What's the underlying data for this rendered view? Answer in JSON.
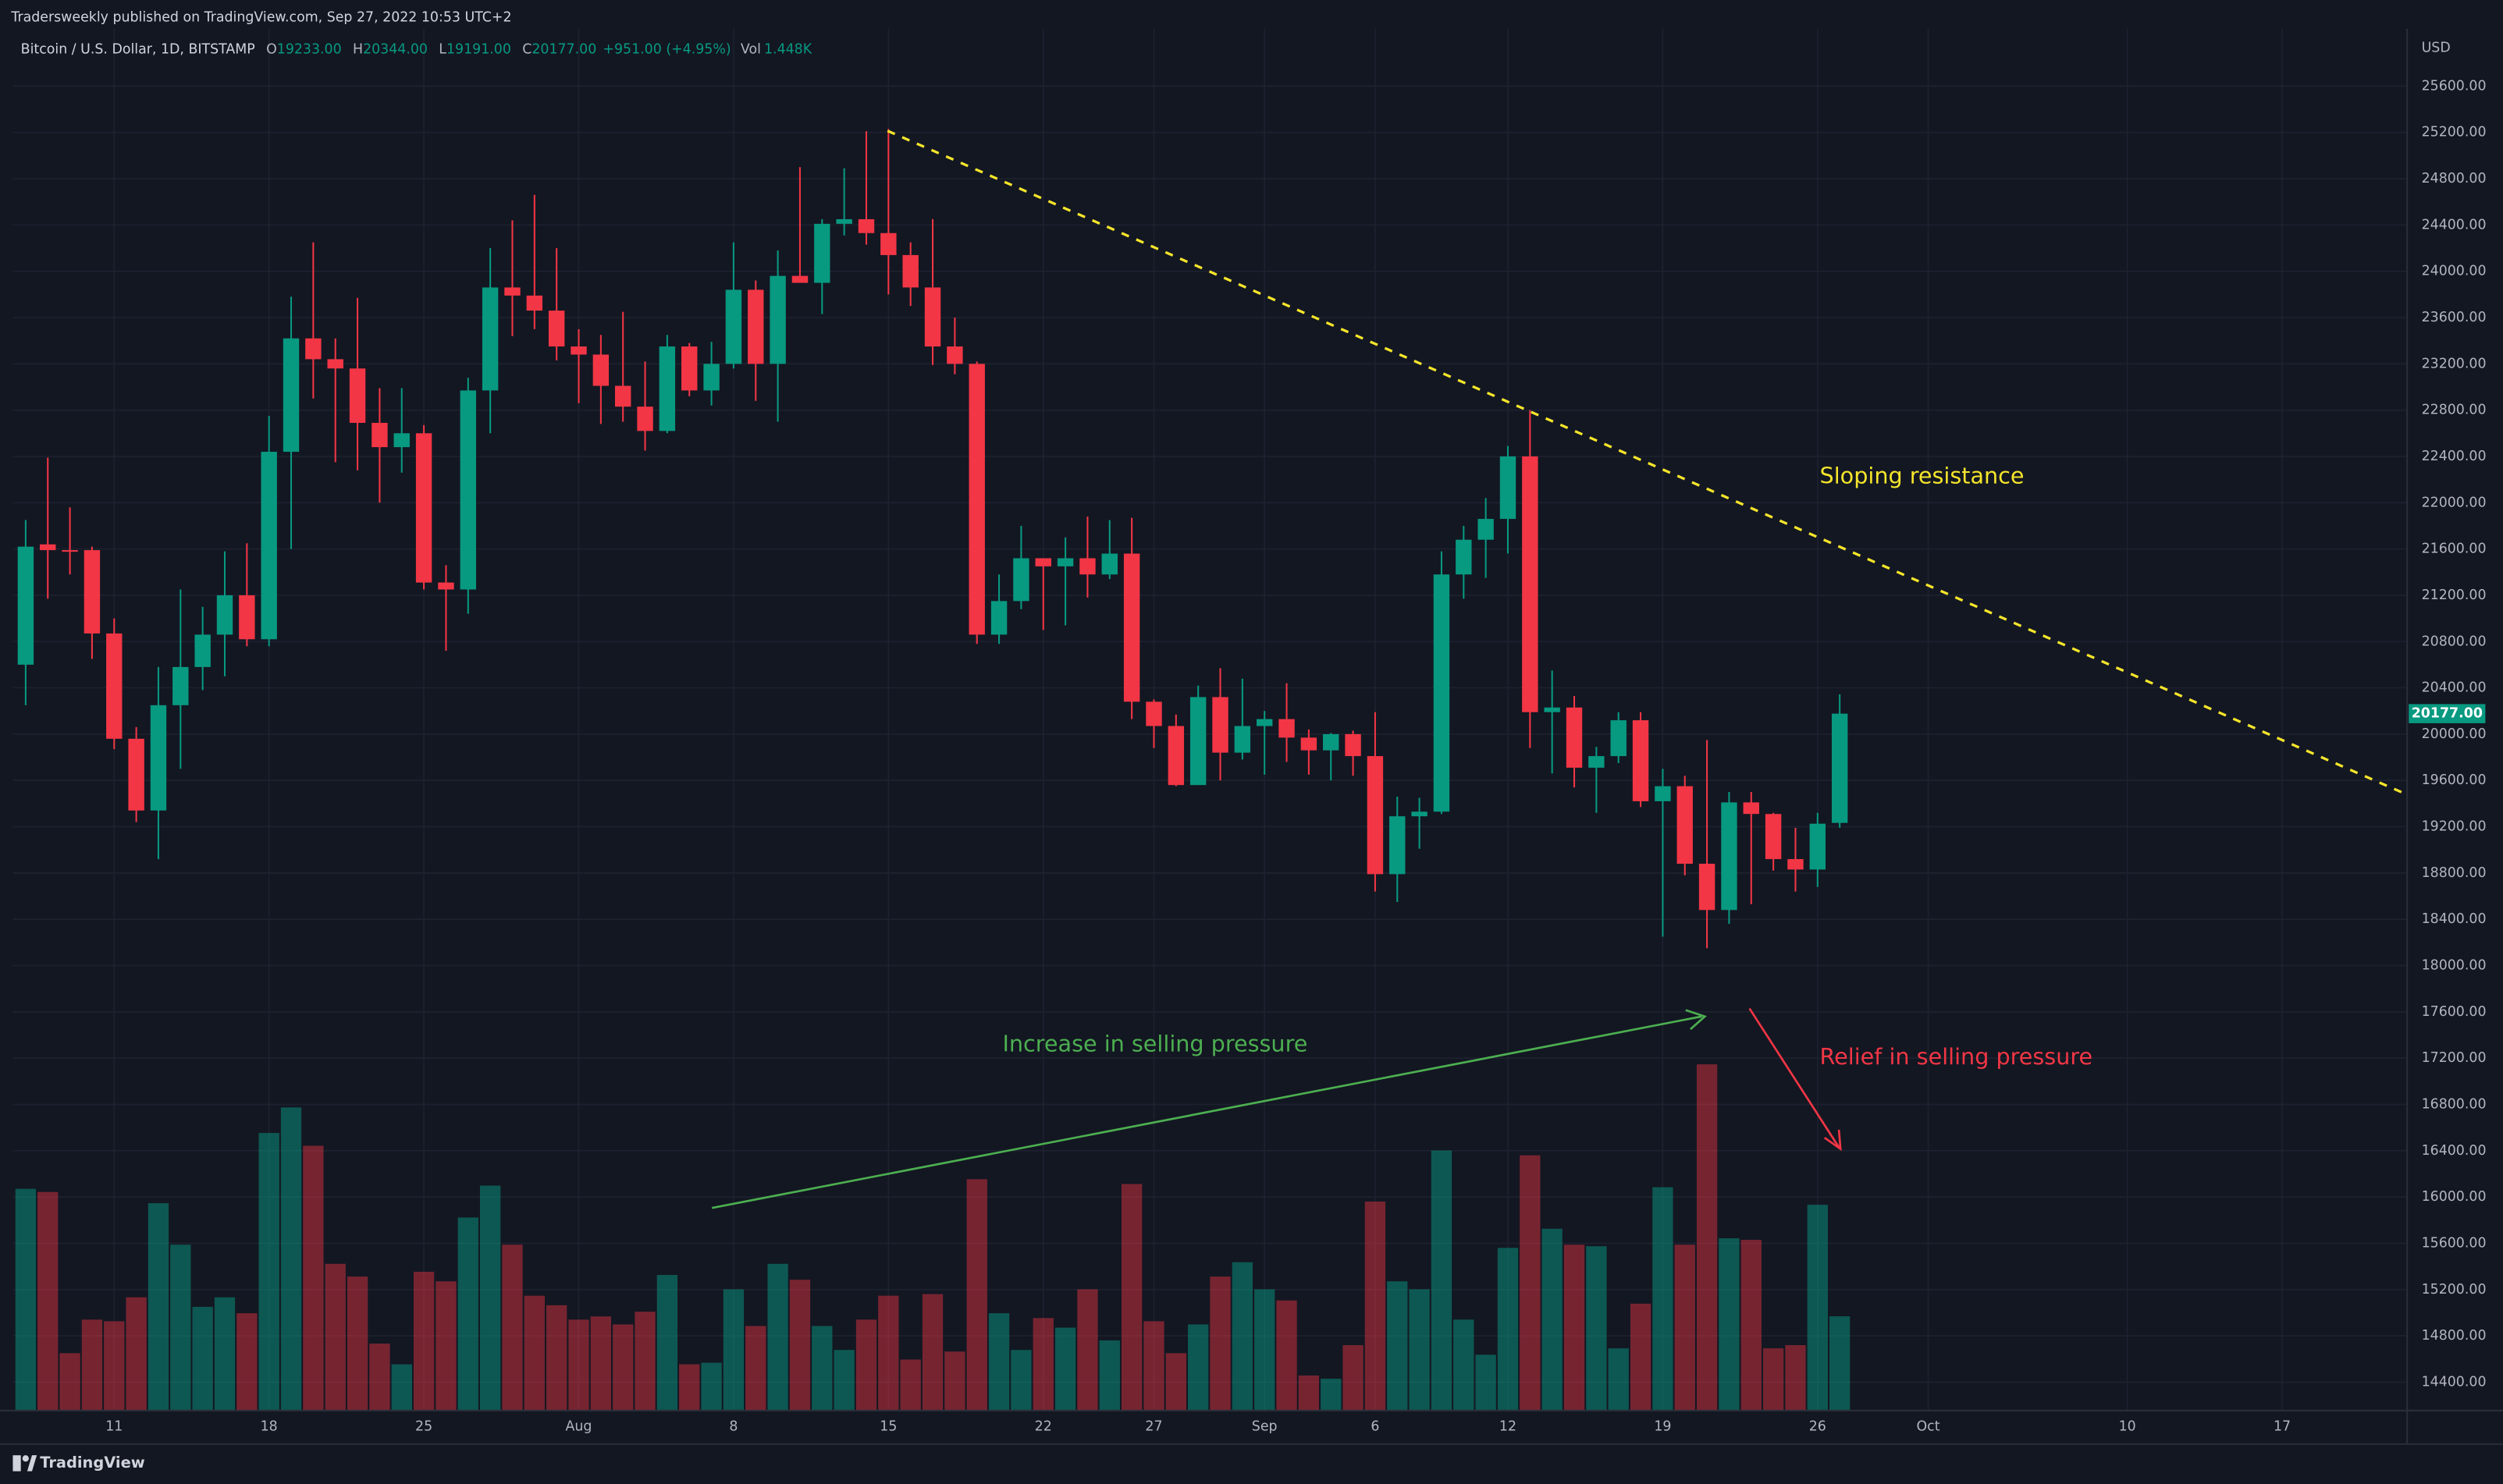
{
  "chart_data": {
    "type": "candlestick",
    "published": "Tradersweekly published on TradingView.com, Sep 27, 2022 10:53 UTC+2",
    "symbol": "Bitcoin / U.S. Dollar, 1D, BITSTAMP",
    "header_fields": [
      {
        "key": "O",
        "value": 19233,
        "label": "19233.00"
      },
      {
        "key": "H",
        "value": 20344,
        "label": "20344.00"
      },
      {
        "key": "L",
        "value": 19191,
        "label": "19191.00"
      },
      {
        "key": "C",
        "value": 20177,
        "label": "20177.00"
      }
    ],
    "change": "+951.00 (+4.95%)",
    "volume_field": {
      "key": "Vol",
      "value": 1448,
      "label": "1.448K"
    },
    "currency": "USD",
    "brand": "TradingView",
    "annotations": [
      "Sloping resistance",
      "Increase in selling pressure",
      "Relief in selling pressure"
    ],
    "last_price": {
      "value": 20177,
      "label": "20177.00"
    },
    "up_color": "#089981",
    "down_color": "#f23645",
    "open": [
      20600,
      21640,
      21590,
      21590,
      20870,
      19960,
      19340,
      20250,
      20580,
      20860,
      21200,
      20820,
      22440,
      23420,
      23240,
      23160,
      22690,
      22480,
      22600,
      21310,
      21250,
      22970,
      23860,
      23790,
      23660,
      23350,
      23280,
      23010,
      22830,
      22620,
      23350,
      22970,
      23200,
      23840,
      23200,
      23960,
      23900,
      24410,
      24450,
      24330,
      24140,
      23860,
      23350,
      23200,
      20860,
      21150,
      21520,
      21450,
      21520,
      21380,
      21560,
      20280,
      20070,
      19560,
      20320,
      19840,
      20070,
      20130,
      19970,
      19860,
      20000,
      19810,
      18790,
      19290,
      19330,
      21380,
      21680,
      21860,
      22400,
      20190,
      20230,
      19710,
      19810,
      20120,
      19420,
      19550,
      18880,
      18480,
      19410,
      19310,
      18920,
      18830,
      19233
    ],
    "high": [
      21850,
      22390,
      21960,
      21620,
      21000,
      20060,
      20580,
      21250,
      21100,
      21580,
      21650,
      22750,
      23780,
      24250,
      23420,
      23770,
      22990,
      22990,
      22670,
      21460,
      23080,
      24200,
      24440,
      24660,
      24200,
      23500,
      23450,
      23650,
      23220,
      23450,
      23380,
      23390,
      24250,
      23920,
      24180,
      24900,
      24450,
      24890,
      25210,
      25230,
      24250,
      24450,
      23600,
      23220,
      21380,
      21800,
      21520,
      21700,
      21880,
      21850,
      21870,
      20300,
      20170,
      20420,
      20570,
      20480,
      20200,
      20440,
      20040,
      20010,
      20030,
      20190,
      19460,
      19450,
      21580,
      21800,
      22040,
      22490,
      22800,
      20550,
      20330,
      19890,
      20190,
      20190,
      19700,
      19640,
      19950,
      19500,
      19500,
      19320,
      19190,
      19320,
      20344
    ],
    "low": [
      20250,
      21170,
      21380,
      20650,
      19870,
      19240,
      18920,
      19700,
      20380,
      20500,
      20760,
      20760,
      21600,
      22900,
      22350,
      22280,
      22000,
      22260,
      21250,
      20720,
      21040,
      22600,
      23440,
      23500,
      23230,
      22860,
      22680,
      22700,
      22450,
      22600,
      22920,
      22840,
      23160,
      22880,
      22700,
      23920,
      23630,
      24310,
      24230,
      23800,
      23700,
      23190,
      23110,
      20780,
      20780,
      21080,
      20900,
      20940,
      21180,
      21340,
      20130,
      19880,
      19550,
      19560,
      19600,
      19780,
      19650,
      19760,
      19650,
      19600,
      19640,
      18640,
      18550,
      19010,
      19310,
      21170,
      21350,
      21560,
      19880,
      19660,
      19540,
      19320,
      19750,
      19370,
      18250,
      18780,
      18150,
      18360,
      18530,
      18820,
      18640,
      18680,
      19191
    ],
    "close": [
      21620,
      21590,
      21580,
      20870,
      19960,
      19340,
      20250,
      20580,
      20860,
      21200,
      20820,
      22440,
      23420,
      23240,
      23160,
      22690,
      22480,
      22600,
      21310,
      21250,
      22970,
      23860,
      23790,
      23660,
      23350,
      23280,
      23010,
      22830,
      22620,
      23350,
      22970,
      23200,
      23840,
      23200,
      23960,
      23900,
      24410,
      24450,
      24330,
      24140,
      23860,
      23350,
      23200,
      20860,
      21150,
      21520,
      21450,
      21520,
      21380,
      21560,
      20280,
      20070,
      19560,
      20320,
      19840,
      20070,
      20130,
      19970,
      19860,
      20000,
      19810,
      18790,
      19290,
      19330,
      21380,
      21680,
      21860,
      22400,
      20190,
      20230,
      19710,
      19810,
      20120,
      19420,
      19550,
      18880,
      18480,
      19410,
      19310,
      18920,
      18830,
      19226,
      20177
    ],
    "volume": [
      3406,
      3357,
      882,
      1397,
      1372,
      1740,
      3185,
      2548,
      1593,
      1740,
      1495,
      4263,
      4655,
      4067,
      2254,
      2058,
      1029,
      711,
      2132,
      1985,
      2965,
      3455,
      2548,
      1764,
      1617,
      1397,
      1446,
      1323,
      1519,
      2083,
      711,
      735,
      1862,
      1299,
      2254,
      2009,
      1299,
      931,
      1397,
      1764,
      784,
      1789,
      907,
      3553,
      1495,
      931,
      1421,
      1274,
      1862,
      1078,
      3479,
      1372,
      882,
      1323,
      2058,
      2279,
      1862,
      1691,
      539,
      490,
      1005,
      3210,
      1985,
      1862,
      3994,
      1397,
      858,
      2499,
      3920,
      2793,
      2548,
      2524,
      956,
      1642,
      3430,
      2548,
      5317,
      2646,
      2622,
      956,
      1005,
      3161,
      1448
    ],
    "xlim": [
      -0.58,
      107.65
    ],
    "xticks": [
      {
        "value": 4,
        "label": "11"
      },
      {
        "value": 11,
        "label": "18"
      },
      {
        "value": 18,
        "label": "25"
      },
      {
        "value": 25,
        "label": "Aug"
      },
      {
        "value": 32,
        "label": "8"
      },
      {
        "value": 39,
        "label": "15"
      },
      {
        "value": 46,
        "label": "22"
      },
      {
        "value": 51,
        "label": "27"
      },
      {
        "value": 56,
        "label": "Sep"
      },
      {
        "value": 61,
        "label": "6"
      },
      {
        "value": 67,
        "label": "12"
      },
      {
        "value": 74,
        "label": "19"
      },
      {
        "value": 81,
        "label": "26"
      },
      {
        "value": 86,
        "label": "Oct"
      },
      {
        "value": 95,
        "label": "10"
      },
      {
        "value": 102,
        "label": "17"
      }
    ],
    "ylim": [
      14154,
      26096
    ],
    "yticks": [
      {
        "value": 14400,
        "label": "14400.00"
      },
      {
        "value": 14800,
        "label": "14800.00"
      },
      {
        "value": 15200,
        "label": "15200.00"
      },
      {
        "value": 15600,
        "label": "15600.00"
      },
      {
        "value": 16000,
        "label": "16000.00"
      },
      {
        "value": 16400,
        "label": "16400.00"
      },
      {
        "value": 16800,
        "label": "16800.00"
      },
      {
        "value": 17200,
        "label": "17200.00"
      },
      {
        "value": 17600,
        "label": "17600.00"
      },
      {
        "value": 18000,
        "label": "18000.00"
      },
      {
        "value": 18400,
        "label": "18400.00"
      },
      {
        "value": 18800,
        "label": "18800.00"
      },
      {
        "value": 19200,
        "label": "19200.00"
      },
      {
        "value": 19600,
        "label": "19600.00"
      },
      {
        "value": 20000,
        "label": "20000.00"
      },
      {
        "value": 20400,
        "label": "20400.00"
      },
      {
        "value": 20800,
        "label": "20800.00"
      },
      {
        "value": 21200,
        "label": "21200.00"
      },
      {
        "value": 21600,
        "label": "21600.00"
      },
      {
        "value": 22000,
        "label": "22000.00"
      },
      {
        "value": 22400,
        "label": "22400.00"
      },
      {
        "value": 22800,
        "label": "22800.00"
      },
      {
        "value": 23200,
        "label": "23200.00"
      },
      {
        "value": 23600,
        "label": "23600.00"
      },
      {
        "value": 24000,
        "label": "24000.00"
      },
      {
        "value": 24400,
        "label": "24400.00"
      },
      {
        "value": 24800,
        "label": "24800.00"
      },
      {
        "value": 25200,
        "label": "25200.00"
      },
      {
        "value": 25600,
        "label": "25600.00"
      }
    ],
    "grid": true
  }
}
